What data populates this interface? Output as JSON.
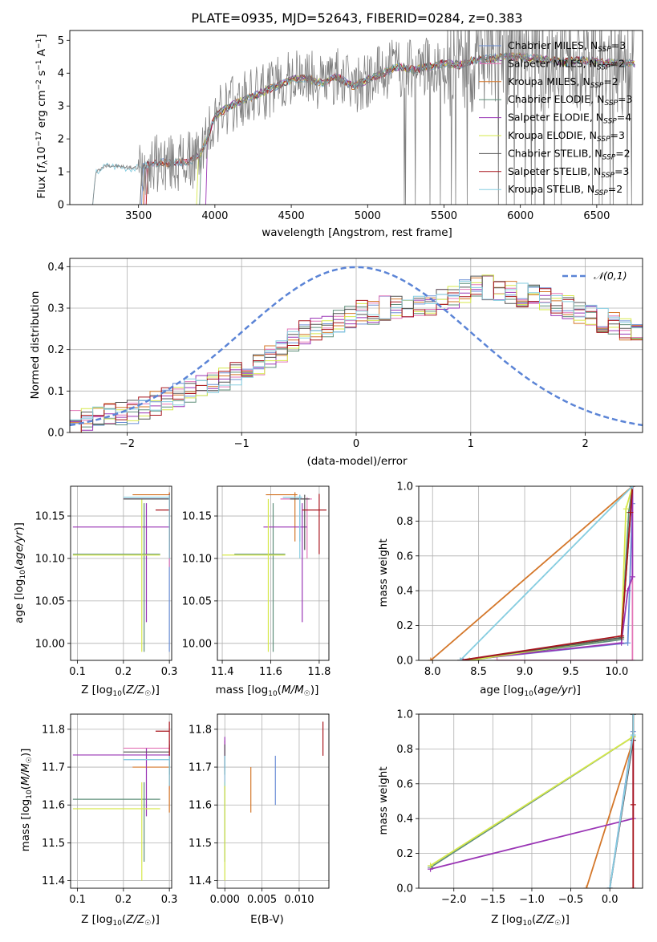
{
  "title": "PLATE=0935, MJD=52643, FIBERID=0284, z=0.383",
  "colors": {
    "Chabrier MILES": "#6b8fd6",
    "Salpeter MILES": "#e377b8",
    "Kroupa MILES": "#d4772a",
    "Chabrier ELODIE": "#5f8f7a",
    "Salpeter ELODIE": "#9a35b5",
    "Kroupa ELODIE": "#d6e84a",
    "Chabrier STELIB": "#555555",
    "Salpeter STELIB": "#a8141c",
    "Kroupa STELIB": "#86cde0",
    "data": "#808080",
    "gaussian": "#5b84d6"
  },
  "chart_data": [
    {
      "id": "spectrum",
      "type": "line",
      "xlabel": "wavelength [Angstrom, rest frame]",
      "ylabel": "Flux [f_λ 10^-17 erg cm^-2 s^-1 A^-1]",
      "xlim": [
        3050,
        6800
      ],
      "ylim": [
        0,
        5.3
      ],
      "xticks": [
        "3500",
        "4000",
        "4500",
        "5000",
        "5500",
        "6000",
        "6500"
      ],
      "yticks": [
        "0",
        "1",
        "2",
        "3",
        "4",
        "5"
      ],
      "grid": false,
      "legend_position": "upper right",
      "legend": [
        "Chabrier MILES, N_SSP=3",
        "Salpeter MILES, N_SSP=2",
        "Kroupa MILES, N_SSP=2",
        "Chabrier ELODIE, N_SSP=3",
        "Salpeter ELODIE, N_SSP=4",
        "Kroupa ELODIE, N_SSP=3",
        "Chabrier STELIB, N_SSP=2",
        "Salpeter STELIB, N_SSP=3",
        "Kroupa STELIB, N_SSP=2"
      ],
      "continuum": {
        "x": [
          3200,
          3220,
          3250,
          3300,
          3400,
          3500,
          3550,
          3650,
          3700,
          3800,
          3850,
          3900,
          3950,
          4000,
          4100,
          4200,
          4300,
          4400,
          4500,
          4600,
          4700,
          4800,
          4900,
          5000,
          5100,
          5200,
          5300,
          5400,
          5500,
          5600,
          5700,
          5800,
          5900,
          6000,
          6100,
          6200,
          6300,
          6400,
          6500,
          6600,
          6700
        ],
        "y": [
          0.0,
          0.95,
          1.1,
          1.2,
          1.15,
          1.1,
          1.2,
          1.3,
          1.25,
          1.3,
          1.35,
          1.5,
          2.0,
          2.7,
          3.0,
          3.2,
          3.4,
          3.6,
          3.8,
          3.85,
          3.7,
          3.9,
          3.6,
          3.8,
          4.0,
          4.2,
          4.1,
          4.2,
          4.3,
          4.25,
          4.4,
          4.45,
          4.5,
          4.5,
          4.45,
          4.4,
          4.35,
          4.4,
          4.35,
          4.3,
          4.3
        ]
      },
      "model_starts": [
        3520,
        3540,
        3530,
        3900,
        3940,
        3880,
        3510,
        3550,
        3200
      ]
    },
    {
      "id": "residuals",
      "type": "area",
      "xlabel": "(data-model)/error",
      "ylabel": "Normed distribution",
      "xlim": [
        -2.5,
        2.5
      ],
      "ylim": [
        0,
        0.42
      ],
      "xticks": [
        "−2",
        "−1",
        "0",
        "1",
        "2"
      ],
      "yticks": [
        "0.0",
        "0.1",
        "0.2",
        "0.3",
        "0.4"
      ],
      "grid": true,
      "legend_position": "upper right",
      "legend": [
        "𝒩(0,1)"
      ],
      "bin_width": 0.1,
      "envelope": [
        0.025,
        0.03,
        0.035,
        0.04,
        0.045,
        0.05,
        0.06,
        0.07,
        0.08,
        0.09,
        0.1,
        0.11,
        0.12,
        0.13,
        0.14,
        0.15,
        0.165,
        0.18,
        0.2,
        0.22,
        0.24,
        0.25,
        0.26,
        0.27,
        0.28,
        0.29,
        0.29,
        0.3,
        0.3,
        0.3,
        0.3,
        0.31,
        0.32,
        0.33,
        0.34,
        0.35,
        0.35,
        0.34,
        0.34,
        0.33,
        0.33,
        0.32,
        0.31,
        0.3,
        0.29,
        0.28,
        0.27,
        0.26,
        0.25,
        0.24,
        0.23,
        0.22,
        0.21,
        0.2,
        0.19,
        0.17,
        0.16,
        0.15,
        0.14,
        0.13,
        0.12,
        0.11,
        0.1,
        0.09,
        0.085,
        0.08,
        0.075,
        0.07,
        0.065,
        0.06
      ]
    },
    {
      "id": "age_vs_Z",
      "type": "scatter",
      "xlabel": "Z [log10(Z/Z☉)]",
      "ylabel": "age [log10(age/yr)]",
      "xlim": [
        0.085,
        0.305
      ],
      "ylim": [
        9.98,
        10.185
      ],
      "xticks": [
        "0.1",
        "0.2",
        "0.3"
      ],
      "yticks": [
        "10.00",
        "10.05",
        "10.10",
        "10.15"
      ],
      "grid": true,
      "points": [
        {
          "series": "Chabrier MILES",
          "x": 0.3,
          "y": 10.17,
          "xerr": [
            0.2,
            0.3
          ],
          "yerr": [
            9.99,
            10.175
          ]
        },
        {
          "series": "Salpeter MILES",
          "x": 0.3,
          "y": 10.17,
          "xerr": [
            0.2,
            0.3
          ],
          "yerr": [
            10.09,
            10.172
          ]
        },
        {
          "series": "Kroupa MILES",
          "x": 0.3,
          "y": 10.175,
          "xerr": [
            0.22,
            0.3
          ],
          "yerr": [
            10.12,
            10.178
          ]
        },
        {
          "series": "Chabrier ELODIE",
          "x": 0.245,
          "y": 10.105,
          "xerr": [
            0.09,
            0.28
          ],
          "yerr": [
            9.99,
            10.165
          ]
        },
        {
          "series": "Salpeter ELODIE",
          "x": 0.25,
          "y": 10.137,
          "xerr": [
            0.09,
            0.3
          ],
          "yerr": [
            10.025,
            10.165
          ]
        },
        {
          "series": "Kroupa ELODIE",
          "x": 0.24,
          "y": 10.104,
          "xerr": [
            0.09,
            0.28
          ],
          "yerr": [
            9.99,
            10.17
          ]
        },
        {
          "series": "Chabrier STELIB",
          "x": 0.3,
          "y": 10.17,
          "xerr": [
            0.2,
            0.3
          ],
          "yerr": [
            10.11,
            10.175
          ]
        },
        {
          "series": "Salpeter STELIB",
          "x": 0.3,
          "y": 10.157,
          "xerr": [
            0.27,
            0.3
          ],
          "yerr": [
            10.1,
            10.176
          ]
        },
        {
          "series": "Kroupa STELIB",
          "x": 0.3,
          "y": 10.172,
          "xerr": [
            0.2,
            0.3
          ],
          "yerr": [
            10.1,
            10.175
          ]
        }
      ]
    },
    {
      "id": "age_vs_mass",
      "type": "scatter",
      "xlabel": "mass [log10(M/M☉)]",
      "ylabel": "",
      "xlim": [
        11.38,
        11.84
      ],
      "ylim": [
        9.98,
        10.185
      ],
      "xticks": [
        "11.4",
        "11.6",
        "11.8"
      ],
      "yticks": [
        "10.00",
        "10.05",
        "10.10",
        "10.15"
      ],
      "grid": true,
      "points": [
        {
          "series": "Chabrier MILES",
          "x": 11.72,
          "y": 10.17,
          "xerr": [
            11.65,
            11.73
          ],
          "yerr": [
            10.12,
            10.175
          ]
        },
        {
          "series": "Salpeter MILES",
          "x": 11.75,
          "y": 10.17,
          "xerr": [
            11.64,
            11.77
          ],
          "yerr": [
            10.1,
            10.172
          ]
        },
        {
          "series": "Kroupa MILES",
          "x": 11.7,
          "y": 10.175,
          "xerr": [
            11.58,
            11.71
          ],
          "yerr": [
            10.12,
            10.178
          ]
        },
        {
          "series": "Chabrier ELODIE",
          "x": 11.61,
          "y": 10.105,
          "xerr": [
            11.45,
            11.66
          ],
          "yerr": [
            9.99,
            10.165
          ]
        },
        {
          "series": "Salpeter ELODIE",
          "x": 11.73,
          "y": 10.137,
          "xerr": [
            11.57,
            11.75
          ],
          "yerr": [
            10.025,
            10.165
          ]
        },
        {
          "series": "Kroupa ELODIE",
          "x": 11.59,
          "y": 10.104,
          "xerr": [
            11.4,
            11.66
          ],
          "yerr": [
            9.99,
            10.17
          ]
        },
        {
          "series": "Chabrier STELIB",
          "x": 11.74,
          "y": 10.17,
          "xerr": [
            11.68,
            11.76
          ],
          "yerr": [
            10.11,
            10.175
          ]
        },
        {
          "series": "Salpeter STELIB",
          "x": 11.8,
          "y": 10.157,
          "xerr": [
            11.73,
            11.83
          ],
          "yerr": [
            10.105,
            10.176
          ]
        },
        {
          "series": "Kroupa STELIB",
          "x": 11.72,
          "y": 10.172,
          "xerr": [
            11.65,
            11.73
          ],
          "yerr": [
            10.1,
            10.175
          ]
        }
      ]
    },
    {
      "id": "weight_vs_age",
      "type": "line",
      "xlabel": "age [log10(age/yr)]",
      "ylabel": "mass weight",
      "xlim": [
        7.85,
        10.28
      ],
      "ylim": [
        0,
        1.0
      ],
      "xticks": [
        "8.0",
        "8.5",
        "9.0",
        "9.5",
        "10.0"
      ],
      "yticks": [
        "0.0",
        "0.2",
        "0.4",
        "0.6",
        "0.8",
        "1.0"
      ],
      "grid": true,
      "series": [
        {
          "name": "Chabrier MILES",
          "x": [
            8.33,
            10.12,
            10.17,
            10.17
          ],
          "y": [
            0.0,
            0.1,
            0.9,
            1.0
          ]
        },
        {
          "name": "Salpeter MILES",
          "x": [
            8.7,
            10.17,
            10.17
          ],
          "y": [
            0.0,
            0.0,
            1.0
          ]
        },
        {
          "name": "Kroupa MILES",
          "x": [
            7.98,
            10.17
          ],
          "y": [
            0.0,
            1.0
          ]
        },
        {
          "name": "Chabrier ELODIE",
          "x": [
            8.4,
            10.05,
            10.13,
            10.17
          ],
          "y": [
            0.0,
            0.12,
            0.85,
            1.0
          ]
        },
        {
          "name": "Salpeter ELODIE",
          "x": [
            8.33,
            10.05,
            10.12,
            10.17,
            10.17
          ],
          "y": [
            0.0,
            0.1,
            0.4,
            0.48,
            1.0
          ]
        },
        {
          "name": "Kroupa ELODIE",
          "x": [
            8.4,
            10.05,
            10.1,
            10.17
          ],
          "y": [
            0.0,
            0.13,
            0.87,
            1.0
          ]
        },
        {
          "name": "Chabrier STELIB",
          "x": [
            8.3,
            10.05,
            10.17
          ],
          "y": [
            0.0,
            0.13,
            1.0
          ]
        },
        {
          "name": "Salpeter STELIB",
          "x": [
            8.3,
            10.05,
            10.15,
            10.17
          ],
          "y": [
            0.0,
            0.14,
            0.85,
            1.0
          ]
        },
        {
          "name": "Kroupa STELIB",
          "x": [
            8.3,
            10.17
          ],
          "y": [
            0.0,
            1.0
          ]
        }
      ]
    },
    {
      "id": "mass_vs_Z",
      "type": "scatter",
      "xlabel": "Z [log10(Z/Z☉)]",
      "ylabel": "mass [log10(M/M☉)]",
      "xlim": [
        0.085,
        0.305
      ],
      "ylim": [
        11.38,
        11.84
      ],
      "xticks": [
        "0.1",
        "0.2",
        "0.3"
      ],
      "yticks": [
        "11.4",
        "11.5",
        "11.6",
        "11.7",
        "11.8"
      ],
      "grid": true,
      "points": [
        {
          "series": "Chabrier MILES",
          "x": 0.3,
          "y": 11.72,
          "xerr": [
            0.2,
            0.3
          ],
          "yerr": [
            11.65,
            11.73
          ]
        },
        {
          "series": "Salpeter MILES",
          "x": 0.3,
          "y": 11.75,
          "xerr": [
            0.2,
            0.3
          ],
          "yerr": [
            11.64,
            11.77
          ]
        },
        {
          "series": "Kroupa MILES",
          "x": 0.3,
          "y": 11.7,
          "xerr": [
            0.22,
            0.3
          ],
          "yerr": [
            11.58,
            11.71
          ]
        },
        {
          "series": "Chabrier ELODIE",
          "x": 0.245,
          "y": 11.615,
          "xerr": [
            0.09,
            0.28
          ],
          "yerr": [
            11.45,
            11.66
          ]
        },
        {
          "series": "Salpeter ELODIE",
          "x": 0.25,
          "y": 11.732,
          "xerr": [
            0.09,
            0.3
          ],
          "yerr": [
            11.57,
            11.75
          ]
        },
        {
          "series": "Kroupa ELODIE",
          "x": 0.24,
          "y": 11.59,
          "xerr": [
            0.09,
            0.28
          ],
          "yerr": [
            11.4,
            11.66
          ]
        },
        {
          "series": "Chabrier STELIB",
          "x": 0.3,
          "y": 11.74,
          "xerr": [
            0.2,
            0.3
          ],
          "yerr": [
            11.68,
            11.76
          ]
        },
        {
          "series": "Salpeter STELIB",
          "x": 0.3,
          "y": 11.795,
          "xerr": [
            0.27,
            0.3
          ],
          "yerr": [
            11.73,
            11.82
          ]
        },
        {
          "series": "Kroupa STELIB",
          "x": 0.3,
          "y": 11.72,
          "xerr": [
            0.2,
            0.3
          ],
          "yerr": [
            11.65,
            11.73
          ]
        }
      ]
    },
    {
      "id": "mass_vs_ebv",
      "type": "scatter",
      "xlabel": "E(B-V)",
      "ylabel": "",
      "xlim": [
        -0.001,
        0.014
      ],
      "ylim": [
        11.38,
        11.84
      ],
      "xticks": [
        "0.000",
        "0.005",
        "0.010"
      ],
      "yticks": [
        "11.4",
        "11.5",
        "11.6",
        "11.7",
        "11.8"
      ],
      "grid": true,
      "points": [
        {
          "series": "Chabrier MILES",
          "x": 0.0068,
          "y": 11.67,
          "yerr": [
            11.6,
            11.73
          ]
        },
        {
          "series": "Salpeter MILES",
          "x": 0.0,
          "y": 11.75,
          "yerr": [
            11.64,
            11.77
          ]
        },
        {
          "series": "Kroupa MILES",
          "x": 0.0035,
          "y": 11.64,
          "yerr": [
            11.58,
            11.7
          ]
        },
        {
          "series": "Chabrier ELODIE",
          "x": 0.0,
          "y": 11.6,
          "yerr": [
            11.45,
            11.66
          ]
        },
        {
          "series": "Salpeter ELODIE",
          "x": 0.0,
          "y": 11.73,
          "yerr": [
            11.69,
            11.78
          ]
        },
        {
          "series": "Kroupa ELODIE",
          "x": 0.0,
          "y": 11.55,
          "yerr": [
            11.4,
            11.66
          ]
        },
        {
          "series": "Chabrier STELIB",
          "x": 0.0,
          "y": 11.74,
          "yerr": [
            11.68,
            11.76
          ]
        },
        {
          "series": "Salpeter STELIB",
          "x": 0.0132,
          "y": 11.77,
          "yerr": [
            11.73,
            11.82
          ]
        },
        {
          "series": "Kroupa STELIB",
          "x": 0.0,
          "y": 11.7,
          "yerr": [
            11.65,
            11.73
          ]
        }
      ]
    },
    {
      "id": "weight_vs_Z",
      "type": "line",
      "xlabel": "Z [log10(Z/Z☉)]",
      "ylabel": "mass weight",
      "xlim": [
        -2.45,
        0.42
      ],
      "ylim": [
        0,
        1.0
      ],
      "xticks": [
        "−2.0",
        "−1.5",
        "−1.0",
        "−0.5",
        "0.0"
      ],
      "yticks": [
        "0.0",
        "0.2",
        "0.4",
        "0.6",
        "0.8",
        "1.0"
      ],
      "grid": true,
      "series": [
        {
          "name": "Chabrier MILES",
          "x": [
            0.0,
            0.3,
            0.3
          ],
          "y": [
            0.0,
            0.9,
            1.0
          ]
        },
        {
          "name": "Salpeter MILES",
          "x": [
            0.0,
            0.3,
            0.3
          ],
          "y": [
            0.0,
            0.85,
            1.0
          ]
        },
        {
          "name": "Kroupa MILES",
          "x": [
            -0.3,
            0.3,
            0.3
          ],
          "y": [
            0.0,
            0.85,
            1.0
          ]
        },
        {
          "name": "Chabrier ELODIE",
          "x": [
            -2.3,
            0.3,
            0.3
          ],
          "y": [
            0.12,
            0.87,
            1.0
          ]
        },
        {
          "name": "Salpeter ELODIE",
          "x": [
            -2.3,
            0.3,
            0.3
          ],
          "y": [
            0.11,
            0.4,
            1.0
          ]
        },
        {
          "name": "Kroupa ELODIE",
          "x": [
            -2.3,
            0.3,
            0.3
          ],
          "y": [
            0.13,
            0.87,
            1.0
          ]
        },
        {
          "name": "Chabrier STELIB",
          "x": [
            0.0,
            0.3,
            0.3
          ],
          "y": [
            0.0,
            0.85,
            1.0
          ]
        },
        {
          "name": "Salpeter STELIB",
          "x": [
            0.3,
            0.3,
            0.3
          ],
          "y": [
            0.0,
            0.48,
            1.0
          ]
        },
        {
          "name": "Kroupa STELIB",
          "x": [
            0.0,
            0.3,
            0.3
          ],
          "y": [
            0.0,
            0.88,
            1.0
          ]
        }
      ]
    }
  ]
}
